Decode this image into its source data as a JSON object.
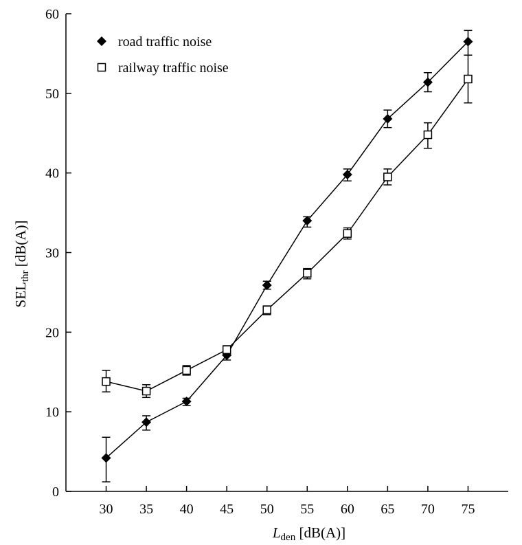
{
  "chart_data": {
    "type": "line",
    "xlabel": {
      "main": "L",
      "sub": "den",
      "unit": " [dB(A)]"
    },
    "ylabel": {
      "main": "SEL",
      "sub": "thr",
      "unit": " [dB(A)]"
    },
    "xlim": [
      25,
      80
    ],
    "ylim": [
      0,
      60
    ],
    "xticks": [
      30,
      35,
      40,
      45,
      50,
      55,
      60,
      65,
      70,
      75
    ],
    "yticks": [
      0,
      10,
      20,
      30,
      40,
      50,
      60
    ],
    "grid": false,
    "legend_position": "top-left",
    "series": [
      {
        "name": "road traffic noise",
        "marker": "diamond",
        "color": "#000000",
        "x": [
          30,
          35,
          40,
          45,
          50,
          55,
          60,
          65,
          70,
          75
        ],
        "y": [
          4.2,
          8.7,
          11.3,
          17.1,
          25.9,
          34.0,
          39.8,
          46.8,
          51.4,
          56.5
        ],
        "err_low": [
          1.2,
          7.7,
          10.8,
          16.5,
          25.4,
          33.2,
          39.0,
          45.7,
          50.2,
          54.8
        ],
        "err_high": [
          6.8,
          9.5,
          11.7,
          17.6,
          26.4,
          34.5,
          40.5,
          47.9,
          52.6,
          57.9
        ]
      },
      {
        "name": "railway traffic noise",
        "marker": "square-open",
        "color": "#000000",
        "x": [
          30,
          35,
          40,
          45,
          50,
          55,
          60,
          65,
          70,
          75
        ],
        "y": [
          13.8,
          12.6,
          15.2,
          17.8,
          22.8,
          27.4,
          32.4,
          39.5,
          44.8,
          51.8
        ],
        "err_low": [
          12.5,
          11.8,
          14.6,
          17.2,
          22.2,
          26.7,
          31.7,
          38.5,
          43.1,
          48.8
        ],
        "err_high": [
          15.2,
          13.4,
          15.8,
          18.3,
          23.3,
          28.0,
          33.1,
          40.5,
          46.3,
          54.8
        ]
      }
    ]
  }
}
